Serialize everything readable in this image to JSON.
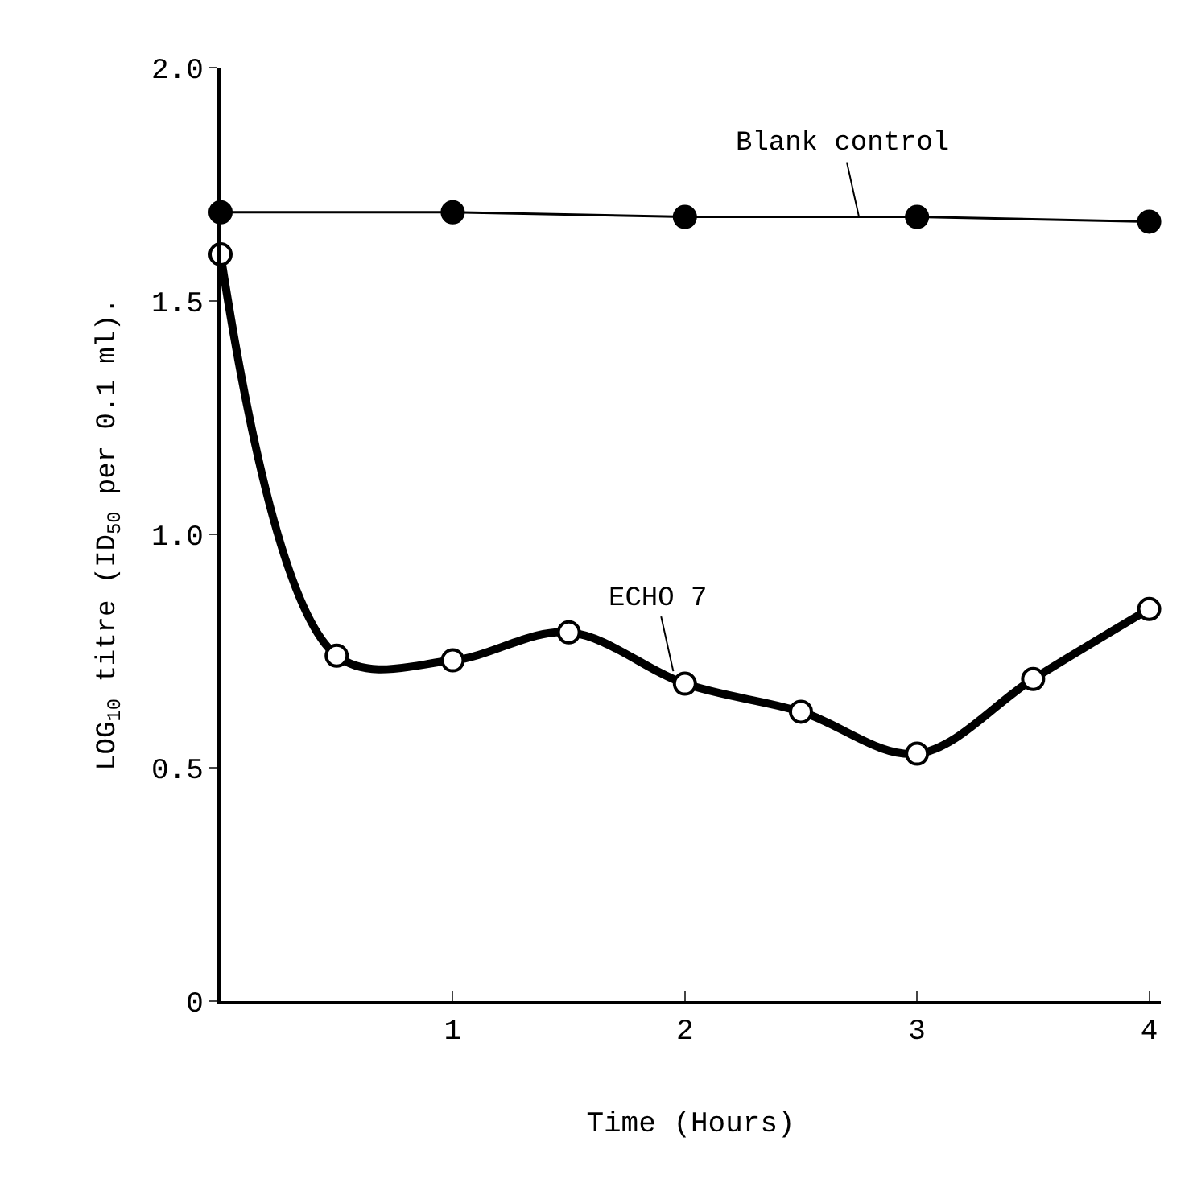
{
  "chart_data": {
    "type": "line",
    "xlabel": "Time (Hours)",
    "ylabel": "LOG$_{10}$ titre (ID$_{50}$ per 0.1 ml).",
    "xlim": [
      0,
      4.05
    ],
    "xticks": [
      1,
      2,
      3,
      4
    ],
    "ylim": [
      0,
      2.0
    ],
    "yticks": [
      0,
      0.5,
      {
        "value": 1.0,
        "label": "1.0"
      },
      {
        "value": 1.5,
        "label": "1.5"
      },
      {
        "value": 2.0,
        "label": "2.0"
      }
    ],
    "marker": "circle",
    "line_style": "solid",
    "series": [
      {
        "name": "Blank control",
        "color": "#000000",
        "x": [
          0,
          1,
          2,
          3,
          4
        ],
        "values": [
          1.69,
          1.69,
          1.68,
          1.68,
          1.67
        ]
      },
      {
        "name": "ECHO 7",
        "color": "#000000",
        "x": [
          0,
          0.5,
          1,
          1.5,
          2,
          2.5,
          3,
          3.5,
          4
        ],
        "values": [
          1.6,
          0.74,
          0.73,
          0.79,
          0.68,
          0.62,
          0.53,
          0.69,
          0.84
        ]
      }
    ]
  }
}
